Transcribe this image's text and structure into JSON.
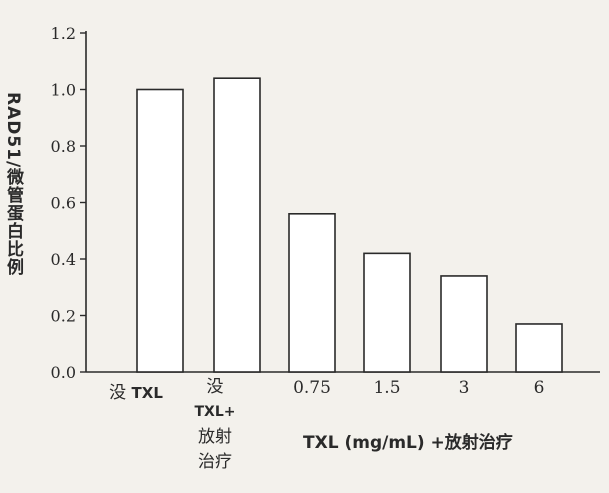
{
  "chart_data": {
    "type": "bar",
    "categories": [
      "没 TXL",
      "没 TXL+放射治疗",
      "0.75",
      "1.5",
      "3",
      "6"
    ],
    "category_parts": [
      {
        "cn": "没",
        "latin": "TXL"
      },
      {
        "cn": "没",
        "latin": "TXL+",
        "cn2": "放射",
        "cn3": "治疗"
      },
      {
        "text": "0.75"
      },
      {
        "text": "1.5"
      },
      {
        "text": "3"
      },
      {
        "text": "6"
      }
    ],
    "values": [
      1.0,
      1.04,
      0.56,
      0.42,
      0.34,
      0.17
    ],
    "ylabel": "RAD51/微管蛋白比例",
    "xlabel": "TXL (mg/mL) +放射治疗",
    "ylim": [
      0,
      1.2
    ],
    "yticks": [
      "0.0",
      "0.2",
      "0.4",
      "0.6",
      "0.8",
      "1.0",
      "1.2"
    ],
    "bar_fill": "#ffffff",
    "bar_stroke": "#2a2a2a",
    "axis_color": "#2a2a2a",
    "background": "#f3f1ec",
    "grid": false
  }
}
